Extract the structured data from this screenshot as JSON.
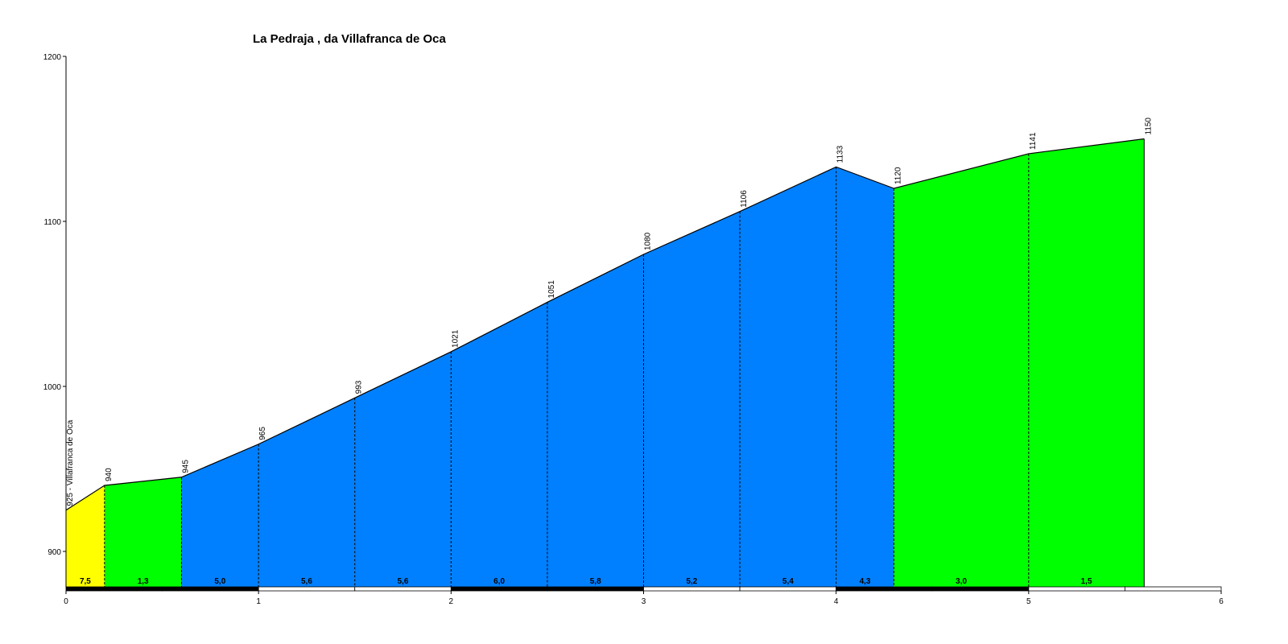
{
  "chart_data": {
    "type": "area",
    "title": "La Pedraja , da Villafranca de Oca",
    "xlabel": "",
    "ylabel": "",
    "xlim": [
      0,
      6
    ],
    "ylim": [
      875,
      1200
    ],
    "x_ticks": [
      "0",
      "1",
      "2",
      "3",
      "4",
      "5",
      "6"
    ],
    "y_ticks": [
      "900",
      "1000",
      "1100",
      "1200"
    ],
    "points": [
      {
        "x": 0.0,
        "y": 925,
        "label": "925 - Villafranca de Oca"
      },
      {
        "x": 0.2,
        "y": 940,
        "label": "940"
      },
      {
        "x": 0.6,
        "y": 945,
        "label": "945"
      },
      {
        "x": 1.0,
        "y": 965,
        "label": "965"
      },
      {
        "x": 1.5,
        "y": 993,
        "label": "993"
      },
      {
        "x": 2.0,
        "y": 1021,
        "label": "1021"
      },
      {
        "x": 2.5,
        "y": 1051,
        "label": "1051"
      },
      {
        "x": 3.0,
        "y": 1080,
        "label": "1080"
      },
      {
        "x": 3.5,
        "y": 1106,
        "label": "1106"
      },
      {
        "x": 4.0,
        "y": 1133,
        "label": "1133"
      },
      {
        "x": 4.3,
        "y": 1120,
        "label": "1120"
      },
      {
        "x": 5.0,
        "y": 1141,
        "label": "1141"
      },
      {
        "x": 5.6,
        "y": 1150,
        "label": "1150"
      }
    ],
    "segments": [
      {
        "from": 0.0,
        "to": 0.2,
        "gradient": "7,5",
        "color": "#ffff00"
      },
      {
        "from": 0.2,
        "to": 0.6,
        "gradient": "1,3",
        "color": "#00ff00"
      },
      {
        "from": 0.6,
        "to": 1.0,
        "gradient": "5,0",
        "color": "#0080ff"
      },
      {
        "from": 1.0,
        "to": 1.5,
        "gradient": "5,6",
        "color": "#0080ff"
      },
      {
        "from": 1.5,
        "to": 2.0,
        "gradient": "5,6",
        "color": "#0080ff"
      },
      {
        "from": 2.0,
        "to": 2.5,
        "gradient": "6,0",
        "color": "#0080ff"
      },
      {
        "from": 2.5,
        "to": 3.0,
        "gradient": "5,8",
        "color": "#0080ff"
      },
      {
        "from": 3.0,
        "to": 3.5,
        "gradient": "5,2",
        "color": "#0080ff"
      },
      {
        "from": 3.5,
        "to": 4.0,
        "gradient": "5,4",
        "color": "#0080ff"
      },
      {
        "from": 4.0,
        "to": 4.3,
        "gradient": "4,3",
        "color": "#0080ff"
      },
      {
        "from": 4.3,
        "to": 5.0,
        "gradient": "3,0",
        "color": "#00ff00"
      },
      {
        "from": 5.0,
        "to": 5.6,
        "gradient": "1,5",
        "color": "#00ff00"
      }
    ],
    "grid": false,
    "legend": "none"
  }
}
